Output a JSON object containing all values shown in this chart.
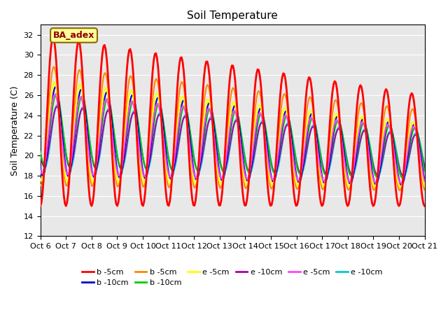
{
  "title": "Soil Temperature",
  "ylabel": "Soil Temperature (C)",
  "ylim": [
    12,
    33
  ],
  "yticks": [
    12,
    14,
    16,
    18,
    20,
    22,
    24,
    26,
    28,
    30,
    32
  ],
  "xtick_labels": [
    "Oct 6",
    "Oct 7",
    "Oct 8",
    "Oct 9",
    "Oct 10",
    "Oct 11",
    "Oct 12",
    "Oct 13",
    "Oct 14",
    "Oct 15",
    "Oct 16",
    "Oct 17",
    "Oct 18",
    "Oct 19",
    "Oct 20",
    "Oct 21"
  ],
  "n_days": 15,
  "points_per_day": 24,
  "background_color": "#e8e8e8",
  "legend_entries": [
    {
      "label": "b -5cm",
      "color": "#ff0000",
      "lw": 2.0
    },
    {
      "label": "b -10cm",
      "color": "#0000cc",
      "lw": 1.5
    },
    {
      "label": "b -5cm",
      "color": "#ff8800",
      "lw": 1.5
    },
    {
      "label": "b -10cm",
      "color": "#00cc00",
      "lw": 1.5
    },
    {
      "label": "e -5cm",
      "color": "#ffff00",
      "lw": 1.5
    },
    {
      "label": "e -10cm",
      "color": "#aa00aa",
      "lw": 1.5
    },
    {
      "label": "e -5cm",
      "color": "#ff44ff",
      "lw": 1.5
    },
    {
      "label": "e -10cm",
      "color": "#00cccc",
      "lw": 1.5
    }
  ],
  "annotation_text": "BA_adex"
}
